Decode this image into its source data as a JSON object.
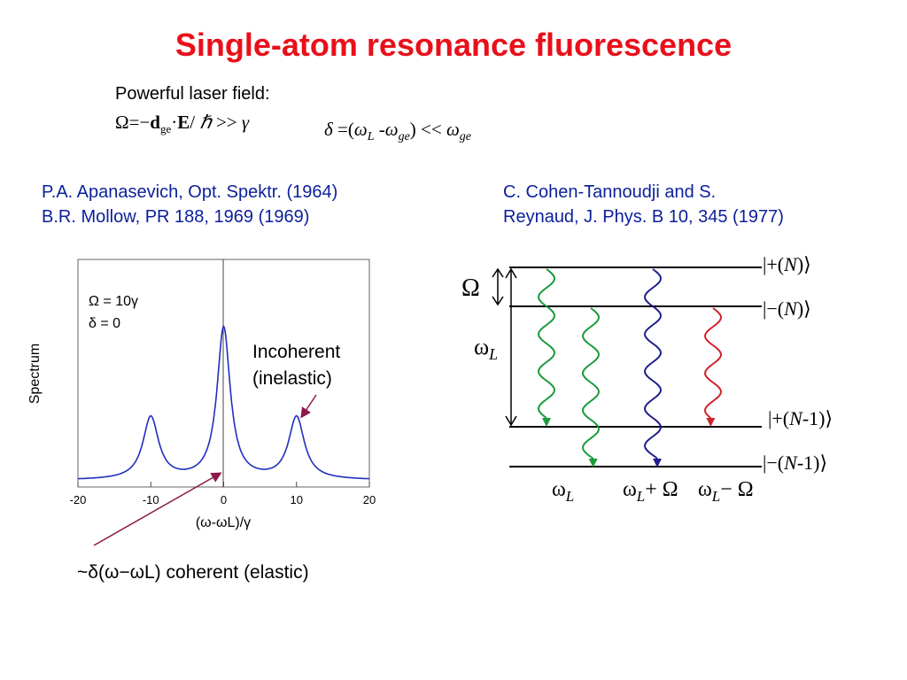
{
  "slide": {
    "title": "Single-atom resonance fluorescence",
    "laser_label": "Powerful laser field:",
    "rabi_formula": "Ω=−d ge·E/ ℏ >> γ",
    "detuning_formula": "δ =(ωL -ωge) << ωge",
    "refs_left": [
      "P.A. Apanasevich, Opt. Spektr. (1964)",
      "B.R. Mollow, PR 188, 1969 (1969)"
    ],
    "refs_right": [
      "C. Cohen-Tannoudji and S.",
      "Reynaud, J. Phys. B 10, 345 (1977)"
    ],
    "incoherent_label": [
      "Incoherent",
      "(inelastic)"
    ],
    "coherent_label": "~δ(ω−ωL) coherent (elastic)"
  },
  "chart_data": {
    "type": "line",
    "ylabel": "Spectrum",
    "xlabel": "(ω-ωL)/γ",
    "x_ticks": [
      "-20",
      "-10",
      "0",
      "10",
      "20"
    ],
    "xlim": [
      -20,
      20
    ],
    "legend": [
      "Ω = 10γ",
      "δ = 0"
    ],
    "grid": false,
    "color": "#1f2fbf",
    "series": [
      {
        "x": [
          -20,
          -15,
          -12,
          -10.5,
          -10,
          -9.5,
          -8,
          -5,
          -3,
          -1.5,
          -0.5,
          0,
          0.5,
          1.5,
          3,
          5,
          8,
          9.5,
          10,
          10.5,
          12,
          15,
          20
        ],
        "y": [
          0.02,
          0.05,
          0.15,
          0.34,
          0.36,
          0.34,
          0.18,
          0.12,
          0.18,
          0.43,
          0.84,
          1.0,
          0.84,
          0.43,
          0.18,
          0.12,
          0.18,
          0.34,
          0.36,
          0.34,
          0.15,
          0.05,
          0.02
        ]
      }
    ]
  },
  "diagram": {
    "levels": [
      "|+(N)⟩",
      "|−(N)⟩",
      "|+(N-1)⟩",
      "|−(N-1)⟩"
    ],
    "omega_label": "Ω",
    "omega_l_label": "ωL",
    "bottom_labels": [
      "ωL",
      "ωL+ Ω",
      "ωL− Ω"
    ],
    "wave_colors": [
      "#1a9a3c",
      "#1a9a3c",
      "#1f1f8a",
      "#d0222a"
    ]
  }
}
